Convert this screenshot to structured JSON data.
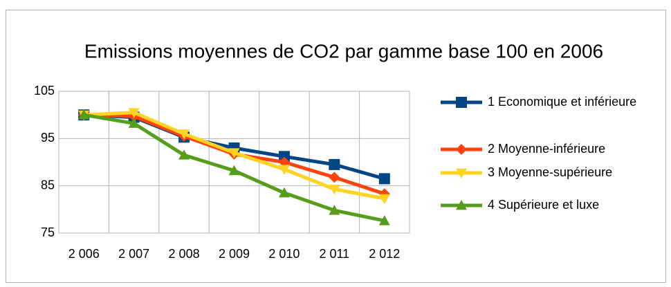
{
  "chart_data": {
    "type": "line",
    "title": "Emissions moyennes de CO2 par gamme base 100 en 2006",
    "categories": [
      "2 006",
      "2 007",
      "2 008",
      "2 009",
      "2 010",
      "2 011",
      "2 012"
    ],
    "series": [
      {
        "name": "1 Economique et inférieure",
        "color": "#004586",
        "marker": "square",
        "values": [
          100,
          99.5,
          95.3,
          93,
          91.2,
          89.5,
          86.5
        ]
      },
      {
        "name": "2 Moyenne-inférieure",
        "color": "#ff420e",
        "marker": "diamond",
        "values": [
          100,
          99.7,
          95.5,
          91.7,
          90,
          86.8,
          83.3
        ]
      },
      {
        "name": "3 Moyenne-supérieure",
        "color": "#ffd320",
        "marker": "triangle-down",
        "values": [
          100,
          100.5,
          96,
          92,
          88.5,
          84.3,
          82.3
        ]
      },
      {
        "name": "4 Supérieure et luxe",
        "color": "#579d1c",
        "marker": "triangle-up",
        "values": [
          100,
          98.2,
          91.5,
          88.2,
          83.5,
          79.8,
          77.6
        ]
      }
    ],
    "ylim": [
      75,
      105
    ],
    "yticks": [
      75,
      85,
      95,
      105
    ],
    "grid": true,
    "legend": "right"
  }
}
